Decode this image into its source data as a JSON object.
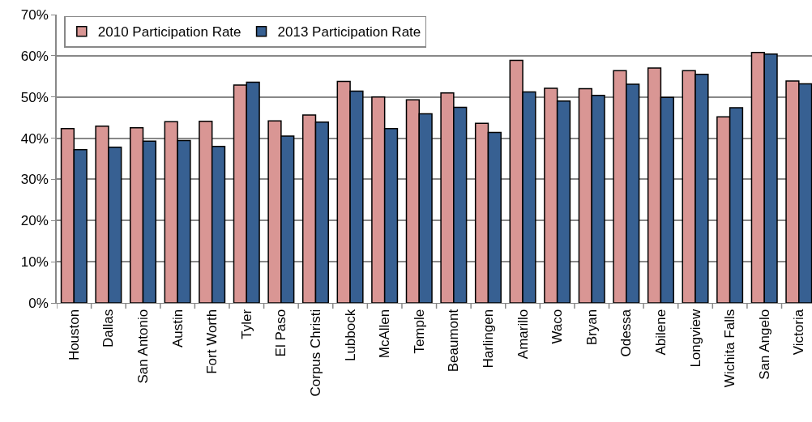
{
  "chart_data": {
    "type": "bar",
    "categories": [
      "Houston",
      "Dallas",
      "San Antonio",
      "Austin",
      "Fort Worth",
      "Tyler",
      "El Paso",
      "Corpus Christi",
      "Lubbock",
      "McAllen",
      "Temple",
      "Beaumont",
      "Harlingen",
      "Amarillo",
      "Waco",
      "Bryan",
      "Odessa",
      "Abilene",
      "Longview",
      "Wichita Falls",
      "San Angelo",
      "Victoria"
    ],
    "series": [
      {
        "name": "2010 Participation Rate",
        "color": "#d99694",
        "values": [
          42.3,
          42.9,
          42.5,
          44.0,
          44.1,
          52.9,
          44.2,
          45.6,
          53.8,
          50.0,
          49.3,
          51.0,
          43.6,
          58.9,
          52.1,
          52.0,
          56.4,
          57.0,
          56.4,
          45.2,
          60.8,
          53.9
        ]
      },
      {
        "name": "2013 Participation Rate",
        "color": "#376092",
        "values": [
          37.2,
          37.8,
          39.3,
          39.4,
          38.0,
          53.6,
          40.5,
          43.9,
          51.4,
          42.3,
          45.9,
          47.5,
          41.4,
          51.2,
          49.0,
          50.4,
          53.1,
          49.9,
          55.5,
          47.4,
          60.4,
          53.2
        ]
      }
    ],
    "ylim": [
      0,
      70
    ],
    "yticks": [
      {
        "value": 0,
        "label": "0%"
      },
      {
        "value": 10,
        "label": "10%"
      },
      {
        "value": 20,
        "label": "20%"
      },
      {
        "value": 30,
        "label": "30%"
      },
      {
        "value": 40,
        "label": "40%"
      },
      {
        "value": 50,
        "label": "50%"
      },
      {
        "value": 60,
        "label": "60%"
      },
      {
        "value": 70,
        "label": "70%"
      }
    ],
    "grid": "y",
    "legend": "top left"
  }
}
